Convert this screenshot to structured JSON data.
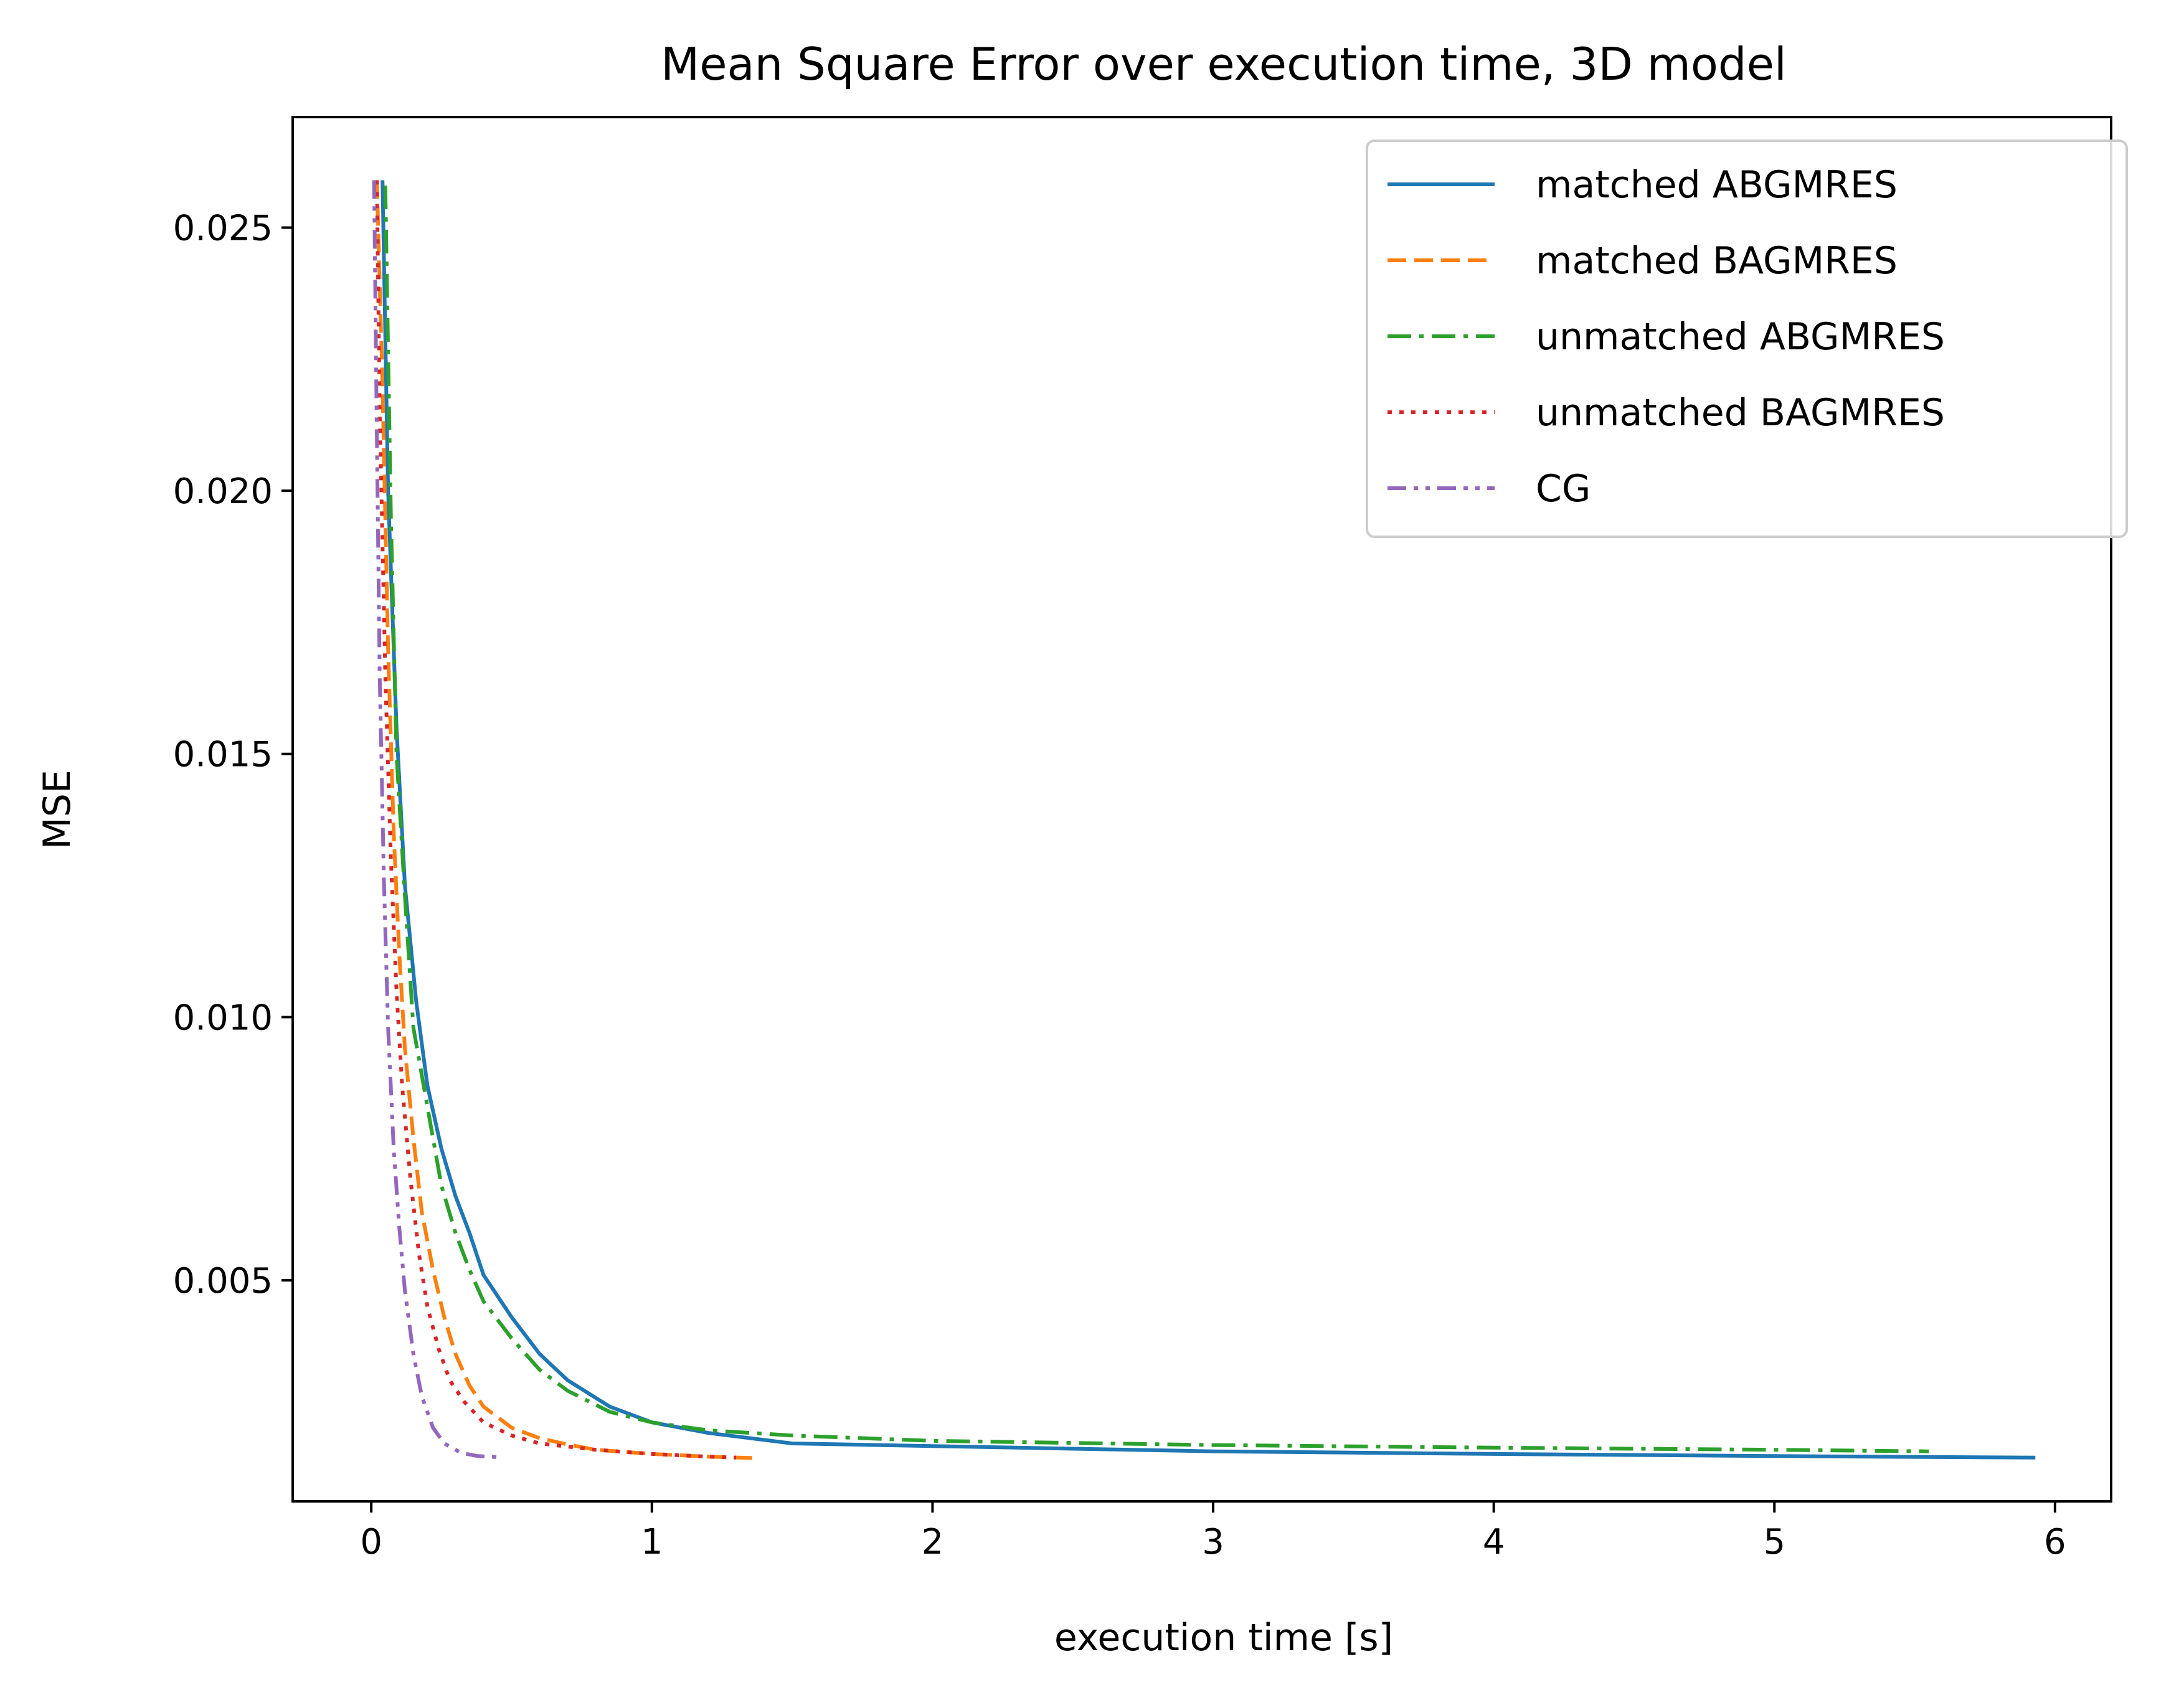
{
  "chart_data": {
    "type": "line",
    "title": "Mean Square Error over execution time, 3D model",
    "xlabel": "execution time [s]",
    "ylabel": "MSE",
    "xlim": [
      -0.28,
      6.2
    ],
    "ylim": [
      0.0008,
      0.0271
    ],
    "xticks": [
      0,
      1,
      2,
      3,
      4,
      5,
      6
    ],
    "xtick_labels": [
      "0",
      "1",
      "2",
      "3",
      "4",
      "5",
      "6"
    ],
    "yticks": [
      0.005,
      0.01,
      0.015,
      0.02,
      0.025
    ],
    "ytick_labels": [
      "0.005",
      "0.010",
      "0.015",
      "0.020",
      "0.025"
    ],
    "grid": false,
    "legend_position": "top-right",
    "series": [
      {
        "name": "matched ABGMRES",
        "color": "#1f77b4",
        "style": "solid",
        "x": [
          0.04,
          0.06,
          0.09,
          0.12,
          0.16,
          0.2,
          0.25,
          0.3,
          0.35,
          0.4,
          0.5,
          0.6,
          0.7,
          0.85,
          1.0,
          1.2,
          1.5,
          2.0,
          2.5,
          3.0,
          4.0,
          5.0,
          5.93
        ],
        "y": [
          0.0259,
          0.02,
          0.0155,
          0.0125,
          0.0103,
          0.0087,
          0.0075,
          0.0066,
          0.0059,
          0.0051,
          0.0043,
          0.0036,
          0.0031,
          0.0026,
          0.0023,
          0.0021,
          0.0019,
          0.00185,
          0.0018,
          0.00175,
          0.0017,
          0.00166,
          0.00163
        ]
      },
      {
        "name": "matched BAGMRES",
        "color": "#ff7f0e",
        "style": "dashed",
        "x": [
          0.02,
          0.04,
          0.06,
          0.08,
          0.1,
          0.12,
          0.15,
          0.18,
          0.22,
          0.26,
          0.3,
          0.35,
          0.4,
          0.5,
          0.6,
          0.7,
          0.8,
          1.0,
          1.2,
          1.38
        ],
        "y": [
          0.0259,
          0.022,
          0.017,
          0.0135,
          0.0112,
          0.0094,
          0.0077,
          0.0063,
          0.0052,
          0.0043,
          0.0036,
          0.003,
          0.0026,
          0.0022,
          0.002,
          0.00188,
          0.00178,
          0.0017,
          0.00165,
          0.00162
        ]
      },
      {
        "name": "unmatched ABGMRES",
        "color": "#2ca02c",
        "style": "dashdot",
        "x": [
          0.05,
          0.07,
          0.09,
          0.12,
          0.15,
          0.2,
          0.25,
          0.3,
          0.35,
          0.4,
          0.5,
          0.6,
          0.7,
          0.85,
          1.0,
          1.2,
          1.5,
          2.0,
          3.0,
          4.0,
          5.0,
          5.55
        ],
        "y": [
          0.0258,
          0.0195,
          0.015,
          0.0123,
          0.0098,
          0.0083,
          0.0068,
          0.0059,
          0.0052,
          0.0046,
          0.0039,
          0.0033,
          0.0029,
          0.0025,
          0.0023,
          0.00215,
          0.00205,
          0.00195,
          0.00187,
          0.00182,
          0.00178,
          0.00175
        ]
      },
      {
        "name": "unmatched BAGMRES",
        "color": "#d62728",
        "style": "dotted",
        "x": [
          0.02,
          0.03,
          0.05,
          0.07,
          0.09,
          0.11,
          0.14,
          0.17,
          0.2,
          0.24,
          0.28,
          0.33,
          0.4,
          0.5,
          0.6,
          0.8,
          1.0,
          1.2,
          1.3
        ],
        "y": [
          0.0259,
          0.0215,
          0.0165,
          0.013,
          0.0105,
          0.0087,
          0.0069,
          0.0055,
          0.0045,
          0.0037,
          0.0031,
          0.0027,
          0.0023,
          0.00205,
          0.0019,
          0.00178,
          0.0017,
          0.00165,
          0.00163
        ]
      },
      {
        "name": "CG",
        "color": "#9467bd",
        "style": "dashdotdot",
        "x": [
          0.01,
          0.02,
          0.03,
          0.045,
          0.06,
          0.08,
          0.1,
          0.12,
          0.15,
          0.18,
          0.22,
          0.26,
          0.32,
          0.38,
          0.45
        ],
        "y": [
          0.0259,
          0.021,
          0.0165,
          0.0126,
          0.0098,
          0.0075,
          0.006,
          0.0048,
          0.0036,
          0.0028,
          0.0022,
          0.0019,
          0.00172,
          0.00166,
          0.00164
        ]
      }
    ]
  }
}
